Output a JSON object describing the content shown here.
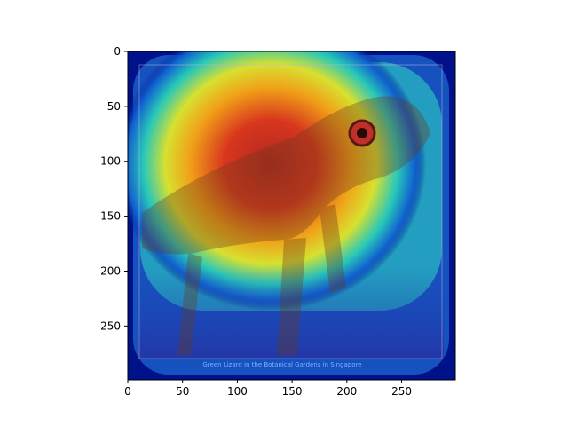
{
  "chart_data": {
    "type": "heatmap",
    "title": "",
    "xlabel": "",
    "ylabel": "",
    "xlim": [
      0,
      299
    ],
    "ylim": [
      299,
      0
    ],
    "xticks": [
      0,
      50,
      100,
      150,
      200,
      250
    ],
    "yticks": [
      0,
      50,
      100,
      150,
      200,
      250
    ],
    "grid": false,
    "legend": "none",
    "image_caption": "Green Lizard in the Botanical Gardens in Singapore",
    "heatmap_peak": {
      "x": 100,
      "y": 105
    }
  },
  "colors": {
    "hot": "#c8281e",
    "warm": "#f0c020",
    "cool": "#18c8b0",
    "cold": "#00118a",
    "frame": "#000a6e"
  }
}
